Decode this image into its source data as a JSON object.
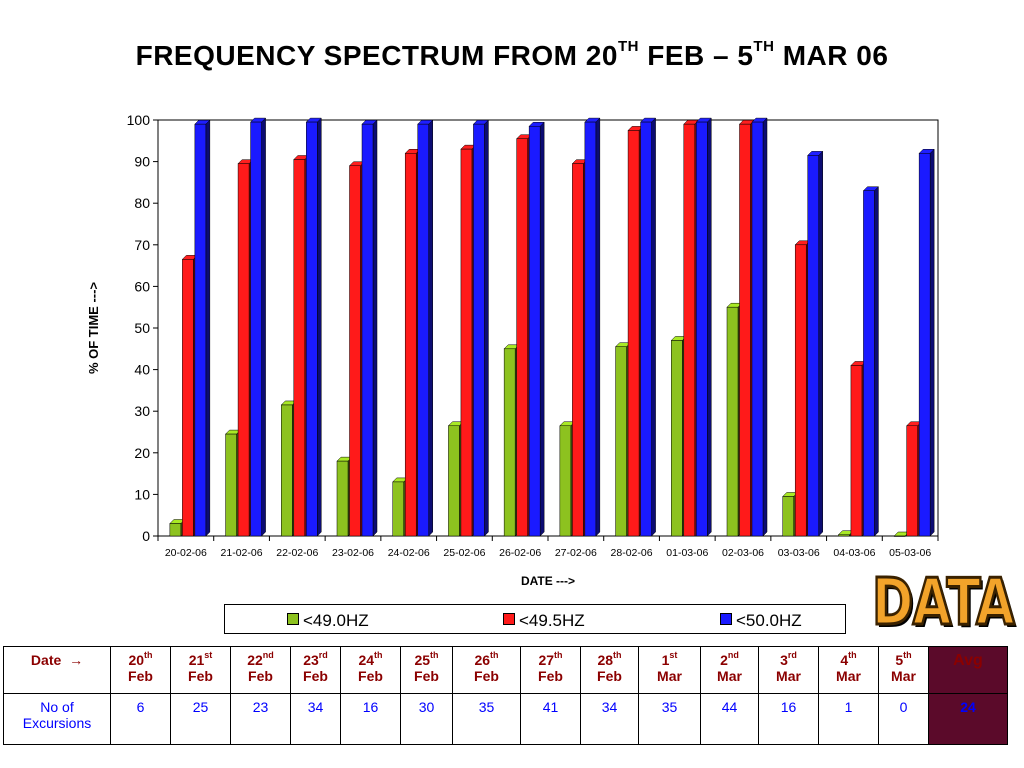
{
  "title": {
    "part1": "FREQUENCY SPECTRUM FROM 20",
    "sup1": "TH",
    "part2": " FEB – 5",
    "sup2": "TH",
    "part3": " MAR 06"
  },
  "stamp_text": "DATA",
  "chart_data": {
    "type": "bar",
    "xlabel": "DATE --->",
    "ylabel": "% OF TIME --->",
    "ylim": [
      0,
      100
    ],
    "yticks": [
      0,
      10,
      20,
      30,
      40,
      50,
      60,
      70,
      80,
      90,
      100
    ],
    "categories": [
      "20-02-06",
      "21-02-06",
      "22-02-06",
      "23-02-06",
      "24-02-06",
      "25-02-06",
      "26-02-06",
      "27-02-06",
      "28-02-06",
      "01-03-06",
      "02-03-06",
      "03-03-06",
      "04-03-06",
      "05-03-06"
    ],
    "series": [
      {
        "name": "<49.0HZ",
        "color": "#8dc21f",
        "values": [
          3,
          24.5,
          31.5,
          18,
          13,
          26.5,
          45,
          26.5,
          45.5,
          47,
          55,
          9.5,
          0.3,
          0
        ]
      },
      {
        "name": "<49.5HZ",
        "color": "#ff1a1a",
        "values": [
          66.5,
          89.5,
          90.5,
          89,
          92,
          93,
          95.5,
          89.5,
          97.5,
          99,
          99,
          70,
          41,
          26.5
        ]
      },
      {
        "name": "<50.0HZ",
        "color": "#1a1aff",
        "values": [
          99,
          99.5,
          99.5,
          99,
          99,
          99,
          98.5,
          99.5,
          99.5,
          99.5,
          99.5,
          91.5,
          83,
          92
        ]
      }
    ],
    "legend": "bottom",
    "grid": false
  },
  "table": {
    "date_label": "Date",
    "arrow": "→",
    "dates": [
      {
        "num": "20",
        "sup": "th",
        "mon": "Feb"
      },
      {
        "num": "21",
        "sup": "st",
        "mon": "Feb"
      },
      {
        "num": "22",
        "sup": "nd",
        "mon": "Feb"
      },
      {
        "num": "23",
        "sup": "rd",
        "mon": "Feb"
      },
      {
        "num": "24",
        "sup": "th",
        "mon": "Feb"
      },
      {
        "num": "25",
        "sup": "th",
        "mon": "Feb"
      },
      {
        "num": "26",
        "sup": "th",
        "mon": "Feb"
      },
      {
        "num": "27",
        "sup": "th",
        "mon": "Feb"
      },
      {
        "num": "28",
        "sup": "th",
        "mon": "Feb"
      },
      {
        "num": "1",
        "sup": "st",
        "mon": "Mar"
      },
      {
        "num": "2",
        "sup": "nd",
        "mon": "Mar"
      },
      {
        "num": "3",
        "sup": "rd",
        "mon": "Mar"
      },
      {
        "num": "4",
        "sup": "th",
        "mon": "Mar"
      },
      {
        "num": "5",
        "sup": "th",
        "mon": "Mar"
      }
    ],
    "avg_label": "Avg",
    "row_label": "No of Excursions",
    "values": [
      "6",
      "25",
      "23",
      "34",
      "16",
      "30",
      "35",
      "41",
      "34",
      "35",
      "44",
      "16",
      "1",
      "0"
    ],
    "avg_value": "24"
  }
}
